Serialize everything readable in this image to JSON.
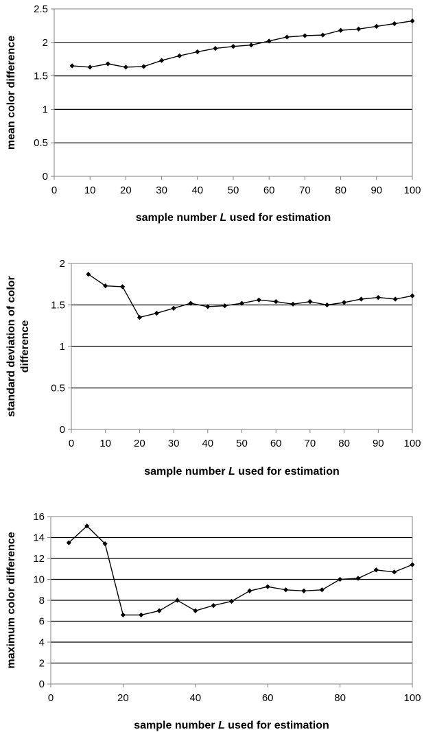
{
  "chart_data": [
    {
      "type": "line",
      "xlabel": "sample number L used for estimation",
      "xlabel_parts": [
        "sample number ",
        "L",
        " used for estimation"
      ],
      "ylabel": "mean color difference",
      "ylabel_lines": [
        "mean color difference"
      ],
      "xlim": [
        0,
        100
      ],
      "ylim": [
        0,
        2.5
      ],
      "xticks": [
        0,
        10,
        20,
        30,
        40,
        50,
        60,
        70,
        80,
        90,
        100
      ],
      "yticks": [
        0,
        0.5,
        1,
        1.5,
        2,
        2.5
      ],
      "grid": true,
      "series": [
        {
          "x": [
            5,
            10,
            15,
            20,
            25,
            30,
            35,
            40,
            45,
            50,
            55,
            60,
            65,
            70,
            75,
            80,
            85,
            90,
            95,
            100
          ],
          "values": [
            1.65,
            1.63,
            1.68,
            1.63,
            1.64,
            1.73,
            1.8,
            1.86,
            1.91,
            1.94,
            1.96,
            2.02,
            2.08,
            2.1,
            2.11,
            2.18,
            2.2,
            2.24,
            2.28,
            2.32
          ]
        }
      ]
    },
    {
      "type": "line",
      "xlabel": "sample number L used for estimation",
      "xlabel_parts": [
        "sample number ",
        "L",
        " used for estimation"
      ],
      "ylabel": "standard deviation of color difference",
      "ylabel_lines": [
        "standard deviation of color",
        "difference"
      ],
      "xlim": [
        0,
        100
      ],
      "ylim": [
        0,
        2
      ],
      "xticks": [
        0,
        10,
        20,
        30,
        40,
        50,
        60,
        70,
        80,
        90,
        100
      ],
      "yticks": [
        0,
        0.5,
        1,
        1.5,
        2
      ],
      "grid": true,
      "series": [
        {
          "x": [
            5,
            10,
            15,
            20,
            25,
            30,
            35,
            40,
            45,
            50,
            55,
            60,
            65,
            70,
            75,
            80,
            85,
            90,
            95,
            100
          ],
          "values": [
            1.87,
            1.73,
            1.72,
            1.35,
            1.4,
            1.46,
            1.52,
            1.48,
            1.49,
            1.52,
            1.56,
            1.54,
            1.51,
            1.54,
            1.5,
            1.53,
            1.57,
            1.59,
            1.57,
            1.61
          ]
        }
      ]
    },
    {
      "type": "line",
      "xlabel": "sample number L used for estimation",
      "xlabel_parts": [
        "sample number ",
        "L",
        " used for estimation"
      ],
      "ylabel": "maximum color difference",
      "ylabel_lines": [
        "maximum color difference"
      ],
      "xlim": [
        0,
        100
      ],
      "ylim": [
        0,
        16
      ],
      "xticks": [
        0,
        20,
        40,
        60,
        80,
        100
      ],
      "yticks": [
        0,
        2,
        4,
        6,
        8,
        10,
        12,
        14,
        16
      ],
      "grid": true,
      "series": [
        {
          "x": [
            5,
            10,
            15,
            20,
            25,
            30,
            35,
            40,
            45,
            50,
            55,
            60,
            65,
            70,
            75,
            80,
            85,
            90,
            95,
            100
          ],
          "values": [
            13.5,
            15.1,
            13.4,
            6.6,
            6.6,
            7.0,
            8.0,
            7.0,
            7.5,
            7.9,
            8.9,
            9.3,
            9.0,
            8.9,
            9.0,
            10.0,
            10.1,
            10.9,
            10.7,
            11.4
          ]
        }
      ]
    }
  ]
}
